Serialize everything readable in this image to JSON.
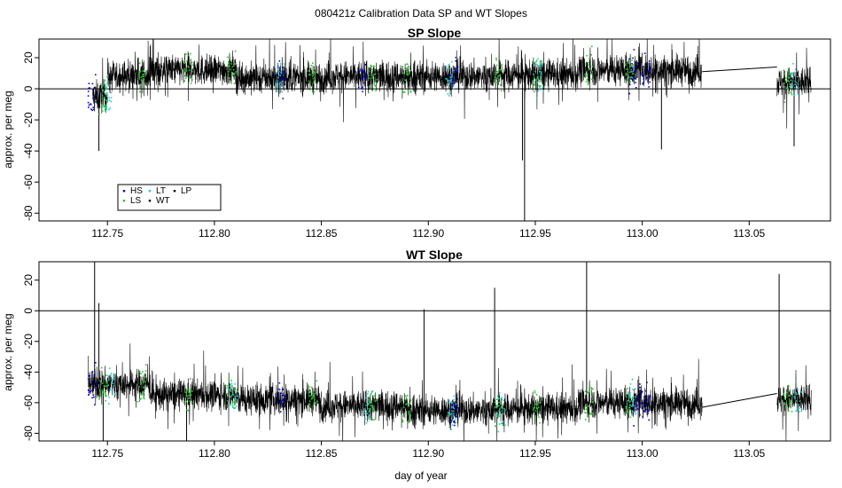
{
  "figure_title": "080421z   Calibration Data SP and WT Slopes",
  "xlabel": "day of year",
  "colors": {
    "HS": "#0000cc",
    "LS": "#22cc22",
    "LT": "#22cccc",
    "WT": "#000000",
    "LP": "#000000"
  },
  "chart_data": [
    {
      "type": "line",
      "title": "SP Slope",
      "xlabel": "",
      "ylabel": "approx. per meg",
      "xlim": [
        112.718,
        113.088
      ],
      "ylim": [
        -85,
        32
      ],
      "x_ticks": [
        "112.75",
        "112.80",
        "112.85",
        "112.90",
        "112.95",
        "113.00",
        "113.05"
      ],
      "y_ticks": [
        "20",
        "0",
        "-20",
        "-40",
        "-60",
        "-80"
      ],
      "reference_line_y": 0,
      "legend": {
        "position": "bottom-left",
        "entries": [
          "HS",
          "LT",
          "LP",
          "LS",
          "WT"
        ]
      },
      "segments": [
        {
          "x_start": 112.743,
          "x_end": 112.75,
          "level": -5
        },
        {
          "x_start": 112.75,
          "x_end": 112.77,
          "level": 8
        },
        {
          "x_start": 112.77,
          "x_end": 112.81,
          "level": 12
        },
        {
          "x_start": 112.81,
          "x_end": 112.85,
          "level": 7
        },
        {
          "x_start": 112.85,
          "x_end": 112.89,
          "level": 8
        },
        {
          "x_start": 112.89,
          "x_end": 112.93,
          "level": 8
        },
        {
          "x_start": 112.93,
          "x_end": 112.97,
          "level": 9
        },
        {
          "x_start": 112.97,
          "x_end": 113.028,
          "level": 12
        },
        {
          "x_start": 113.063,
          "x_end": 113.079,
          "level": 4
        }
      ],
      "spikes": [
        {
          "x": 112.945,
          "y": -85
        },
        {
          "x": 112.944,
          "y": -46
        },
        {
          "x": 113.009,
          "y": -39
        },
        {
          "x": 113.071,
          "y": -37
        },
        {
          "x": 112.746,
          "y": -40
        }
      ],
      "gap_line": {
        "x": [
          113.028,
          113.063
        ],
        "y": [
          11,
          14
        ]
      },
      "series": [
        {
          "name": "HS",
          "color": "#0000cc",
          "bursts_x": [
            112.743,
            112.831,
            112.869,
            112.912,
            112.996,
            113.002
          ]
        },
        {
          "name": "LS",
          "color": "#22cc22",
          "bursts_x": [
            112.748,
            112.766,
            112.788,
            112.808,
            112.846,
            112.874,
            112.89,
            112.933,
            112.951,
            112.975,
            112.994,
            113.068
          ]
        },
        {
          "name": "LT",
          "color": "#22cccc",
          "bursts_x": [
            112.75,
            112.831,
            112.91,
            112.952,
            113.071
          ]
        },
        {
          "name": "WT",
          "color": "#000000"
        },
        {
          "name": "LP",
          "color": "#000000"
        }
      ]
    },
    {
      "type": "line",
      "title": "WT Slope",
      "xlabel": "day of year",
      "ylabel": "approx. per meg",
      "xlim": [
        112.718,
        113.088
      ],
      "ylim": [
        -85,
        32
      ],
      "x_ticks": [
        "112.75",
        "112.80",
        "112.85",
        "112.90",
        "112.95",
        "113.00",
        "113.05"
      ],
      "y_ticks": [
        "20",
        "0",
        "-20",
        "-40",
        "-60",
        "-80"
      ],
      "reference_line_y": 0,
      "segments": [
        {
          "x_start": 112.741,
          "x_end": 112.77,
          "level": -48
        },
        {
          "x_start": 112.77,
          "x_end": 112.81,
          "level": -55
        },
        {
          "x_start": 112.81,
          "x_end": 112.85,
          "level": -58
        },
        {
          "x_start": 112.85,
          "x_end": 112.89,
          "level": -62
        },
        {
          "x_start": 112.89,
          "x_end": 112.93,
          "level": -65
        },
        {
          "x_start": 112.93,
          "x_end": 112.97,
          "level": -64
        },
        {
          "x_start": 112.97,
          "x_end": 113.028,
          "level": -60
        },
        {
          "x_start": 113.063,
          "x_end": 113.079,
          "level": -58
        }
      ],
      "spikes": [
        {
          "x": 112.744,
          "y": 32
        },
        {
          "x": 112.746,
          "y": 5
        },
        {
          "x": 112.898,
          "y": 1
        },
        {
          "x": 112.931,
          "y": 15
        },
        {
          "x": 112.974,
          "y": 32
        },
        {
          "x": 113.064,
          "y": 24
        },
        {
          "x": 112.748,
          "y": -85
        },
        {
          "x": 112.787,
          "y": -85
        }
      ],
      "gap_line": {
        "x": [
          113.028,
          113.063
        ],
        "y": [
          -63,
          -54
        ]
      },
      "series": [
        {
          "name": "HS",
          "color": "#0000cc",
          "bursts_x": [
            112.743,
            112.831,
            112.912,
            112.998,
            113.002
          ]
        },
        {
          "name": "LS",
          "color": "#22cc22",
          "bursts_x": [
            112.748,
            112.766,
            112.788,
            112.808,
            112.846,
            112.874,
            112.89,
            112.933,
            112.951,
            112.975,
            112.994,
            113.068
          ]
        },
        {
          "name": "LT",
          "color": "#22cccc",
          "bursts_x": [
            112.752,
            112.809,
            112.872,
            112.911,
            112.934,
            112.995,
            113.073
          ]
        },
        {
          "name": "WT",
          "color": "#000000"
        },
        {
          "name": "LP",
          "color": "#000000"
        }
      ]
    }
  ]
}
